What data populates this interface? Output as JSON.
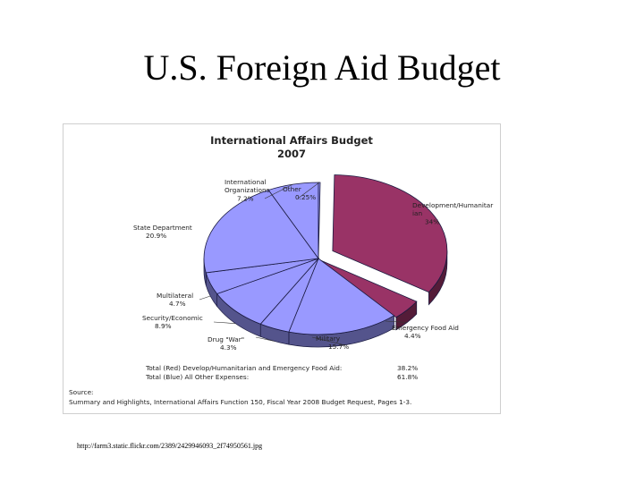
{
  "slide": {
    "title": "U.S. Foreign Aid Budget",
    "image_url": "http://farm3.static.flickr.com/2389/2429946093_2f74950561.jpg"
  },
  "chart_data": {
    "type": "pie",
    "title": "International Affairs Budget",
    "subtitle": "2007",
    "slices": [
      {
        "label_lines": [
          "Development/Humanitar",
          "ian"
        ],
        "value_text": "34%",
        "value": 34,
        "color": "#993366",
        "exploded": true
      },
      {
        "label_lines": [
          "Emergency Food Aid"
        ],
        "value_text": "4.4%",
        "value": 4.4,
        "color": "#993366",
        "exploded": true
      },
      {
        "label_lines": [
          "Military"
        ],
        "value_text": "15.7%",
        "value": 15.7,
        "color": "#9999ff",
        "exploded": false
      },
      {
        "label_lines": [
          "Drug \"War\""
        ],
        "value_text": "4.3%",
        "value": 4.3,
        "color": "#9999ff",
        "exploded": false
      },
      {
        "label_lines": [
          "Security/Economic"
        ],
        "value_text": "8.9%",
        "value": 8.9,
        "color": "#9999ff",
        "exploded": false
      },
      {
        "label_lines": [
          "Multilateral"
        ],
        "value_text": "4.7%",
        "value": 4.7,
        "color": "#9999ff",
        "exploded": false
      },
      {
        "label_lines": [
          "State Department"
        ],
        "value_text": "20.9%",
        "value": 20.9,
        "color": "#9999ff",
        "exploded": false
      },
      {
        "label_lines": [
          "International",
          "Organizations"
        ],
        "value_text": "7.2%",
        "value": 7.2,
        "color": "#9999ff",
        "exploded": false
      },
      {
        "label_lines": [
          "Other"
        ],
        "value_text": "0.25%",
        "value": 0.25,
        "color": "#9999ff",
        "exploded": false
      }
    ],
    "totals": [
      {
        "label": "Total (Red) Develop/Humanitarian and Emergency Food Aid:",
        "value_text": "38.2%"
      },
      {
        "label": "Total (Blue) All Other Expenses:",
        "value_text": "61.8%"
      }
    ],
    "source_heading": "Source:",
    "source_text": "Summary and Highlights, International Affairs Function 150, Fiscal Year 2008 Budget Request, Pages 1-3."
  }
}
